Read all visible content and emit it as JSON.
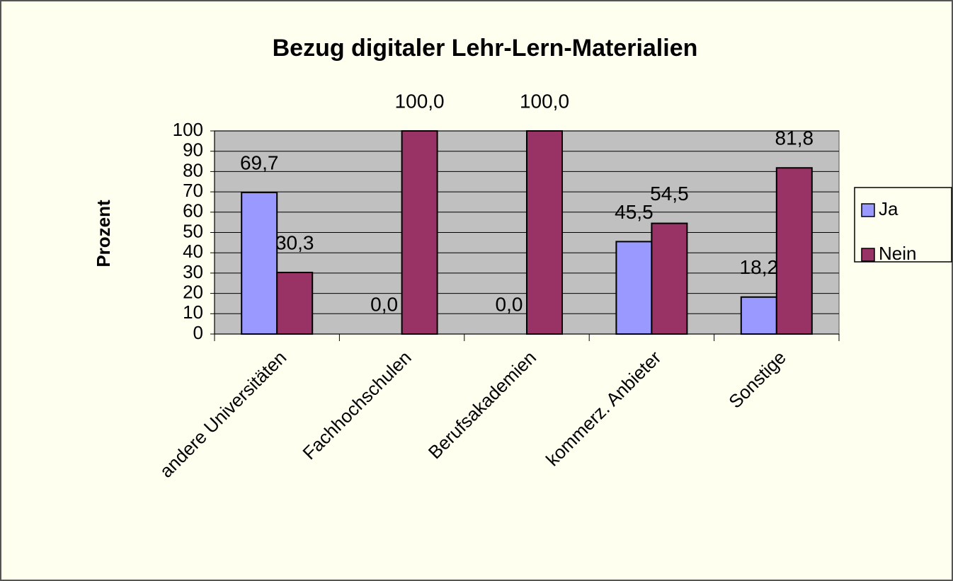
{
  "chart_data": {
    "type": "bar",
    "title": "Bezug digitaler Lehr-Lern-Materialien",
    "y_label": "Prozent",
    "categories": [
      "andere Universitäten",
      "Fachhochschulen",
      "Berufsakademien",
      "kommerz. Anbieter",
      "Sonstige"
    ],
    "series": [
      {
        "name": "Ja",
        "color": "#9999ff",
        "values": [
          69.7,
          0,
          0,
          45.5,
          18.2
        ],
        "value_labels": [
          "69,7",
          "0,0",
          "0,0",
          "45,5",
          "18,2"
        ]
      },
      {
        "name": "Nein",
        "color": "#993366",
        "values": [
          30.3,
          100,
          100,
          54.5,
          81.8
        ],
        "value_labels": [
          "30,3",
          "100,0",
          "100,0",
          "54,5",
          "81,8"
        ]
      }
    ],
    "ylim": [
      0,
      100
    ],
    "yticks": [
      0,
      10,
      20,
      30,
      40,
      50,
      60,
      70,
      80,
      90,
      100
    ],
    "grid": true,
    "legend": "right"
  }
}
